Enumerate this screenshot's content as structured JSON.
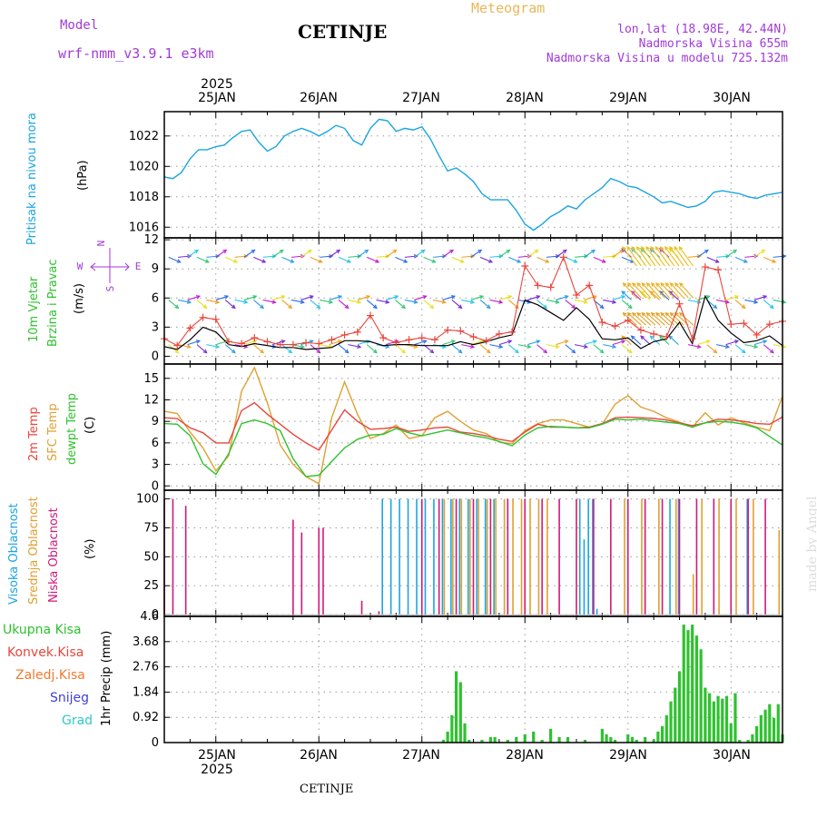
{
  "header": {
    "model_label": "Model",
    "model_name": "wrf-nmm_v3.9.1 e3km",
    "title": "CETINJE",
    "meteogram_label": "Meteogram",
    "location": "lon,lat (18.98E, 42.44N)",
    "elevation": "Nadmorska Visina 655m",
    "model_elevation": "Nadmorska Visina u modelu 725.132m"
  },
  "dates": {
    "year": "2025",
    "labels": [
      "25JAN",
      "26JAN",
      "27JAN",
      "28JAN",
      "29JAN",
      "30JAN"
    ]
  },
  "panels": {
    "pressure": {
      "title": "Pritisak na nivou mora",
      "unit": "(hPa)",
      "ticks": [
        "1022",
        "1020",
        "1018",
        "1016"
      ]
    },
    "wind": {
      "title_line1": "10m Vjetar",
      "title_line2": "Brzina i Pravac",
      "unit": "(m/s)",
      "ticks": [
        "12",
        "9",
        "6",
        "3",
        "0"
      ],
      "compass_n": "N",
      "compass_s": "S",
      "compass_w": "W",
      "compass_e": "E"
    },
    "temp": {
      "label_2m": "2m Temp",
      "label_sfc": "SFC Temp",
      "label_dew": "dewpt Temp",
      "unit": "(C)",
      "ticks": [
        "15",
        "12",
        "9",
        "6",
        "3",
        "0"
      ]
    },
    "cloud": {
      "label_high": "Visoka Oblacnost",
      "label_mid": "Srednja Oblacnost",
      "label_low": "Niska Oblacnost",
      "unit": "(%)",
      "ticks": [
        "100",
        "75",
        "50",
        "25",
        "0"
      ]
    },
    "precip": {
      "unit": "1hr Precip (mm)",
      "ticks": [
        "4.6",
        "3.68",
        "2.76",
        "1.84",
        "0.92",
        "0"
      ],
      "legend": [
        "Ukupna Kisa",
        "Konvek.Kisa",
        "Zaledj.Kisa",
        "Snijeg",
        "Grad"
      ]
    }
  },
  "footer": {
    "station": "CETINJE",
    "credit": "made by Angel"
  },
  "colors": {
    "pressure": "#1ba5e0",
    "temp2m": "#e8463c",
    "sfc": "#e0a030",
    "dew": "#2ec22e",
    "high_cloud": "#1ba5e0",
    "mid_cloud": "#e0a030",
    "low_cloud": "#d0197a",
    "total_rain": "#2ec22e",
    "conv_rain": "#e8463c",
    "title_purple": "#a23ad6",
    "gold": "#e8b65a"
  },
  "chart_data": {
    "type": "line",
    "x_unit": "hours from 25JAN 00UTC (-12 .. 132)",
    "pressure": {
      "x": [
        -12,
        -10,
        -8,
        -6,
        -4,
        -2,
        0,
        2,
        4,
        6,
        8,
        10,
        12,
        14,
        16,
        18,
        20,
        22,
        24,
        26,
        28,
        30,
        32,
        34,
        36,
        38,
        40,
        42,
        44,
        46,
        48,
        50,
        52,
        54,
        56,
        58,
        60,
        62,
        64,
        66,
        68,
        70,
        72,
        74,
        76,
        78,
        80,
        82,
        84,
        86,
        88,
        90,
        92,
        94,
        96,
        98,
        100,
        102,
        104,
        106,
        108,
        110,
        112,
        114,
        116,
        118,
        120,
        122,
        124,
        126,
        128,
        130,
        132
      ],
      "values": [
        1019.3,
        1019.2,
        1019.6,
        1020.5,
        1021.1,
        1021.1,
        1021.3,
        1021.4,
        1021.9,
        1022.3,
        1022.4,
        1021.6,
        1021.0,
        1021.3,
        1022.0,
        1022.3,
        1022.5,
        1022.3,
        1022.0,
        1022.3,
        1022.7,
        1022.5,
        1021.7,
        1021.4,
        1022.5,
        1023.1,
        1023.0,
        1022.3,
        1022.5,
        1022.4,
        1022.6,
        1021.8,
        1020.7,
        1019.7,
        1019.9,
        1019.5,
        1019.0,
        1018.2,
        1017.8,
        1017.8,
        1017.8,
        1017.1,
        1016.2,
        1015.8,
        1016.2,
        1016.7,
        1017.0,
        1017.4,
        1017.2,
        1017.8,
        1018.2,
        1018.6,
        1019.2,
        1019.0,
        1018.7,
        1018.6,
        1018.3,
        1018.0,
        1017.6,
        1017.7,
        1017.5,
        1017.3,
        1017.4,
        1017.7,
        1018.3,
        1018.4,
        1018.3,
        1018.2,
        1018.0,
        1017.9,
        1018.1,
        1018.2,
        1018.3
      ]
    },
    "wind_speed": {
      "x": [
        -12,
        -9,
        -6,
        -3,
        0,
        3,
        6,
        9,
        12,
        15,
        18,
        21,
        24,
        27,
        30,
        33,
        36,
        39,
        42,
        45,
        48,
        51,
        54,
        57,
        60,
        63,
        66,
        69,
        72,
        75,
        78,
        81,
        84,
        87,
        90,
        93,
        96,
        99,
        102,
        105,
        108,
        111,
        114,
        117,
        120,
        123,
        126,
        129,
        132
      ],
      "values": [
        1.0,
        0.7,
        1.7,
        3.0,
        2.5,
        1.2,
        1.0,
        1.3,
        1.1,
        0.9,
        0.9,
        0.7,
        0.8,
        0.9,
        1.6,
        1.6,
        1.5,
        1.1,
        1.2,
        1.2,
        1.1,
        1.1,
        1.1,
        1.5,
        1.2,
        1.5,
        1.9,
        2.2,
        5.8,
        5.3,
        4.5,
        3.7,
        5.0,
        3.8,
        1.8,
        1.7,
        1.9,
        0.8,
        1.5,
        1.8,
        3.5,
        1.3,
        6.2,
        3.7,
        2.4,
        1.4,
        1.6,
        2.1,
        1.1
      ],
      "gust": [
        1.8,
        1.1,
        2.9,
        4.0,
        3.8,
        1.5,
        1.3,
        1.9,
        1.5,
        1.2,
        1.2,
        1.4,
        1.3,
        1.7,
        2.2,
        2.5,
        4.2,
        1.9,
        1.4,
        1.7,
        1.9,
        1.7,
        2.7,
        2.6,
        2.0,
        1.6,
        2.3,
        2.5,
        9.3,
        7.3,
        7.1,
        10.2,
        6.3,
        7.3,
        3.5,
        3.1,
        3.7,
        2.7,
        2.3,
        2.0,
        5.4,
        1.8,
        9.2,
        8.9,
        3.3,
        3.4,
        2.2,
        3.3,
        3.6
      ]
    },
    "temp_2m": {
      "x": [
        -12,
        -9,
        -6,
        -3,
        0,
        3,
        6,
        9,
        12,
        15,
        18,
        21,
        24,
        27,
        30,
        33,
        36,
        39,
        42,
        45,
        48,
        51,
        54,
        57,
        60,
        63,
        66,
        69,
        72,
        75,
        78,
        81,
        84,
        87,
        90,
        93,
        96,
        99,
        102,
        105,
        108,
        111,
        114,
        117,
        120,
        123,
        126,
        129,
        132
      ],
      "values": [
        9.5,
        9.4,
        8.1,
        7.4,
        6.0,
        6.0,
        10.5,
        11.6,
        10.0,
        8.6,
        7.2,
        6.0,
        5.0,
        7.8,
        10.6,
        9.0,
        7.9,
        8.0,
        8.2,
        7.6,
        7.8,
        8.1,
        8.2,
        7.5,
        7.3,
        7.0,
        6.5,
        6.2,
        7.5,
        8.6,
        8.2,
        8.2,
        8.1,
        8.2,
        8.7,
        9.5,
        9.6,
        9.5,
        9.4,
        9.2,
        8.8,
        8.4,
        8.8,
        9.3,
        9.2,
        9.0,
        8.7,
        8.6,
        9.6
      ]
    },
    "temp_sfc": {
      "x": [
        -12,
        -9,
        -6,
        -3,
        0,
        3,
        6,
        9,
        12,
        15,
        18,
        21,
        24,
        27,
        30,
        33,
        36,
        39,
        42,
        45,
        48,
        51,
        54,
        57,
        60,
        63,
        66,
        69,
        72,
        75,
        78,
        81,
        84,
        87,
        90,
        93,
        96,
        99,
        102,
        105,
        108,
        111,
        114,
        117,
        120,
        123,
        126,
        129,
        132
      ],
      "values": [
        10.4,
        10.1,
        7.5,
        5.3,
        2.1,
        4.2,
        13.2,
        16.5,
        11.6,
        5.7,
        3.0,
        1.3,
        0.3,
        9.5,
        14.5,
        10.0,
        6.6,
        7.3,
        8.5,
        6.6,
        7.0,
        9.5,
        10.4,
        9.0,
        7.8,
        7.3,
        6.1,
        5.9,
        7.7,
        8.7,
        9.2,
        9.2,
        8.7,
        8.2,
        8.6,
        11.4,
        12.6,
        11.0,
        10.4,
        9.5,
        8.9,
        8.2,
        10.2,
        8.5,
        9.5,
        8.8,
        8.2,
        7.7,
        12.5
      ]
    },
    "temp_dew": {
      "x": [
        -12,
        -9,
        -6,
        -3,
        0,
        3,
        6,
        9,
        12,
        15,
        18,
        21,
        24,
        27,
        30,
        33,
        36,
        39,
        42,
        45,
        48,
        51,
        54,
        57,
        60,
        63,
        66,
        69,
        72,
        75,
        78,
        81,
        84,
        87,
        90,
        93,
        96,
        99,
        102,
        105,
        108,
        111,
        114,
        117,
        120,
        123,
        126,
        129,
        132
      ],
      "values": [
        8.7,
        8.6,
        7.0,
        3.1,
        1.6,
        4.5,
        8.7,
        9.2,
        8.7,
        7.7,
        3.8,
        1.3,
        1.5,
        3.4,
        5.3,
        6.5,
        7.1,
        7.2,
        8.0,
        7.4,
        7.0,
        7.4,
        7.8,
        7.4,
        7.0,
        6.7,
        6.2,
        5.6,
        7.1,
        8.1,
        8.3,
        8.2,
        8.1,
        8.1,
        8.6,
        9.3,
        9.2,
        9.3,
        9.1,
        8.9,
        8.7,
        8.2,
        8.8,
        9.0,
        8.9,
        8.6,
        8.1,
        6.9,
        5.7
      ]
    },
    "cloud_pct": {
      "low": [
        [
          -12,
          100
        ],
        [
          -10,
          100
        ],
        [
          -7,
          94
        ],
        [
          18,
          82
        ],
        [
          20,
          71
        ],
        [
          24,
          75
        ],
        [
          25,
          75
        ],
        [
          34,
          12
        ],
        [
          38,
          3
        ],
        [
          48,
          100
        ],
        [
          52,
          100
        ],
        [
          56,
          100
        ],
        [
          60,
          100
        ],
        [
          64,
          100
        ],
        [
          68,
          100
        ],
        [
          72,
          100
        ],
        [
          76,
          100
        ],
        [
          80,
          100
        ],
        [
          84,
          100
        ],
        [
          88,
          100
        ],
        [
          92,
          100
        ],
        [
          96,
          100
        ],
        [
          100,
          100
        ],
        [
          104,
          100
        ],
        [
          108,
          100
        ],
        [
          112,
          100
        ],
        [
          116,
          100
        ],
        [
          120,
          100
        ],
        [
          124,
          100
        ],
        [
          128,
          100
        ]
      ],
      "mid": [
        [
          53,
          100
        ],
        [
          55,
          100
        ],
        [
          57,
          100
        ],
        [
          59,
          100
        ],
        [
          61,
          100
        ],
        [
          63,
          100
        ],
        [
          65,
          100
        ],
        [
          67,
          100
        ],
        [
          69,
          100
        ],
        [
          71,
          100
        ],
        [
          73,
          100
        ],
        [
          75,
          100
        ],
        [
          77,
          100
        ],
        [
          95,
          100
        ],
        [
          99,
          100
        ],
        [
          103,
          100
        ],
        [
          107,
          100
        ],
        [
          111,
          35
        ],
        [
          113,
          100
        ],
        [
          117,
          100
        ],
        [
          121,
          100
        ],
        [
          125,
          100
        ],
        [
          131,
          73
        ]
      ],
      "high": [
        [
          39,
          100
        ],
        [
          41,
          100
        ],
        [
          43,
          100
        ],
        [
          45,
          100
        ],
        [
          47,
          100
        ],
        [
          49,
          100
        ],
        [
          51,
          100
        ],
        [
          53,
          100
        ],
        [
          55,
          100
        ],
        [
          57,
          100
        ],
        [
          59,
          100
        ],
        [
          61,
          100
        ],
        [
          63,
          100
        ],
        [
          65,
          100
        ],
        [
          85,
          100
        ],
        [
          86,
          65
        ],
        [
          87,
          100
        ],
        [
          88,
          100
        ],
        [
          89,
          5
        ],
        [
          106,
          100
        ],
        [
          108,
          100
        ],
        [
          124,
          100
        ]
      ]
    },
    "precip_mm": {
      "total": [
        [
          53,
          0.1
        ],
        [
          54,
          0.4
        ],
        [
          55,
          1.0
        ],
        [
          56,
          2.6
        ],
        [
          57,
          2.2
        ],
        [
          58,
          0.7
        ],
        [
          59,
          0.1
        ],
        [
          62,
          0.1
        ],
        [
          64,
          0.2
        ],
        [
          65,
          0.2
        ],
        [
          68,
          0.1
        ],
        [
          70,
          0.2
        ],
        [
          72,
          0.3
        ],
        [
          74,
          0.4
        ],
        [
          76,
          0.1
        ],
        [
          78,
          0.5
        ],
        [
          80,
          0.2
        ],
        [
          82,
          0.2
        ],
        [
          86,
          0.1
        ],
        [
          90,
          0.5
        ],
        [
          91,
          0.3
        ],
        [
          92,
          0.2
        ],
        [
          93,
          0.1
        ],
        [
          96,
          0.3
        ],
        [
          97,
          0.2
        ],
        [
          98,
          0.1
        ],
        [
          100,
          0.2
        ],
        [
          102,
          0.1
        ],
        [
          103,
          0.4
        ],
        [
          104,
          0.6
        ],
        [
          105,
          1.0
        ],
        [
          106,
          1.5
        ],
        [
          107,
          2.0
        ],
        [
          108,
          2.6
        ],
        [
          109,
          4.3
        ],
        [
          110,
          4.1
        ],
        [
          111,
          4.3
        ],
        [
          112,
          3.9
        ],
        [
          113,
          3.4
        ],
        [
          114,
          2.0
        ],
        [
          115,
          1.8
        ],
        [
          116,
          1.5
        ],
        [
          117,
          1.7
        ],
        [
          118,
          1.6
        ],
        [
          119,
          1.7
        ],
        [
          120,
          0.7
        ],
        [
          121,
          1.8
        ],
        [
          122,
          0.1
        ],
        [
          124,
          0.1
        ],
        [
          125,
          0.3
        ],
        [
          126,
          0.6
        ],
        [
          127,
          1.0
        ],
        [
          128,
          1.2
        ],
        [
          129,
          1.4
        ],
        [
          130,
          0.9
        ],
        [
          131,
          1.4
        ],
        [
          132,
          0.3
        ]
      ]
    }
  }
}
